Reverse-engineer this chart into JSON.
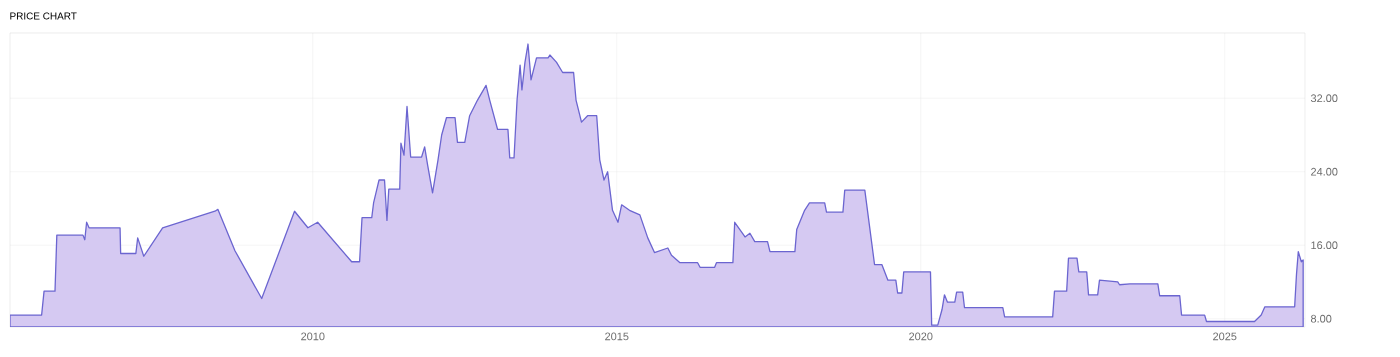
{
  "chart_data": {
    "type": "area",
    "title": "PRICE CHART",
    "color": "#d5c9f2",
    "grid": true,
    "xlim": [
      2005.02,
      2026.32
    ],
    "ylim": [
      7.1,
      39.1
    ],
    "xticks": [
      2010,
      2015,
      2020,
      2025
    ],
    "yticks": [
      {
        "value": 8,
        "label": "8.00"
      },
      {
        "value": 16,
        "label": "16.00"
      },
      {
        "value": 24,
        "label": "24.00"
      },
      {
        "value": 32,
        "label": "32.00"
      }
    ],
    "x": [
      2005.02,
      2005.54,
      2005.58,
      2005.76,
      2005.79,
      2006.22,
      2006.25,
      2006.28,
      2006.32,
      2006.83,
      2006.84,
      2007.09,
      2007.12,
      2007.22,
      2007.53,
      2008.39,
      2008.44,
      2008.72,
      2009.16,
      2009.7,
      2009.92,
      2010.08,
      2010.64,
      2010.77,
      2010.81,
      2010.97,
      2011.0,
      2011.05,
      2011.09,
      2011.18,
      2011.22,
      2011.25,
      2011.43,
      2011.45,
      2011.5,
      2011.55,
      2011.61,
      2011.79,
      2011.84,
      2011.89,
      2011.97,
      2012.06,
      2012.12,
      2012.2,
      2012.34,
      2012.38,
      2012.5,
      2012.58,
      2012.71,
      2012.85,
      2012.91,
      2013.04,
      2013.21,
      2013.24,
      2013.31,
      2013.36,
      2013.41,
      2013.44,
      2013.49,
      2013.54,
      2013.59,
      2013.68,
      2013.87,
      2013.9,
      2014.01,
      2014.11,
      2014.29,
      2014.33,
      2014.42,
      2014.52,
      2014.67,
      2014.72,
      2014.79,
      2014.85,
      2014.93,
      2015.02,
      2015.08,
      2015.21,
      2015.38,
      2015.51,
      2015.62,
      2015.84,
      2015.9,
      2016.04,
      2016.33,
      2016.37,
      2016.61,
      2016.64,
      2016.91,
      2016.94,
      2017.11,
      2017.19,
      2017.27,
      2017.48,
      2017.52,
      2017.93,
      2017.96,
      2018.09,
      2018.17,
      2018.42,
      2018.45,
      2018.72,
      2018.75,
      2019.08,
      2019.24,
      2019.36,
      2019.46,
      2019.59,
      2019.62,
      2019.69,
      2019.72,
      2020.16,
      2020.18,
      2020.28,
      2020.35,
      2020.39,
      2020.44,
      2020.56,
      2020.59,
      2020.69,
      2020.72,
      2021.35,
      2021.38,
      2022.17,
      2022.2,
      2022.4,
      2022.43,
      2022.57,
      2022.6,
      2022.73,
      2022.76,
      2022.91,
      2022.94,
      2023.24,
      2023.27,
      2023.44,
      2023.9,
      2023.93,
      2024.26,
      2024.29,
      2024.67,
      2024.7,
      2025.49,
      2025.6,
      2025.66,
      2026.15,
      2026.18,
      2026.21,
      2026.26,
      2026.29
    ],
    "values": [
      8.4,
      8.4,
      11.0,
      11.0,
      17.1,
      17.1,
      16.6,
      18.5,
      17.9,
      17.9,
      15.1,
      15.1,
      16.8,
      14.8,
      17.9,
      19.7,
      19.9,
      15.4,
      10.2,
      19.7,
      17.9,
      18.5,
      14.2,
      14.2,
      19.0,
      19.0,
      20.6,
      22.0,
      23.1,
      23.1,
      18.7,
      22.1,
      22.1,
      27.1,
      25.8,
      31.1,
      25.6,
      25.6,
      26.7,
      24.7,
      21.7,
      25.3,
      28.0,
      29.9,
      29.9,
      27.2,
      27.2,
      30.1,
      31.8,
      33.4,
      31.8,
      28.6,
      28.6,
      25.5,
      25.5,
      31.8,
      35.6,
      32.9,
      35.9,
      37.9,
      34.0,
      36.4,
      36.4,
      36.7,
      35.9,
      34.8,
      34.8,
      31.8,
      29.4,
      30.1,
      30.1,
      25.3,
      23.1,
      24.0,
      19.8,
      18.5,
      20.4,
      19.8,
      19.3,
      16.8,
      15.2,
      15.7,
      14.9,
      14.1,
      14.1,
      13.6,
      13.6,
      14.1,
      14.1,
      18.5,
      16.9,
      17.3,
      16.4,
      16.4,
      15.3,
      15.3,
      17.7,
      19.8,
      20.6,
      20.6,
      19.6,
      19.6,
      22.0,
      22.0,
      13.9,
      13.9,
      12.2,
      12.2,
      10.8,
      10.8,
      13.1,
      13.1,
      7.3,
      7.3,
      9.0,
      10.6,
      9.8,
      9.8,
      10.9,
      10.9,
      9.2,
      9.2,
      8.2,
      8.2,
      11.0,
      11.0,
      14.6,
      14.6,
      13.1,
      13.1,
      10.6,
      10.6,
      12.2,
      12.0,
      11.7,
      11.8,
      11.8,
      10.5,
      10.5,
      8.4,
      8.4,
      7.7,
      7.7,
      8.4,
      9.3,
      9.3,
      12.8,
      15.3,
      14.2,
      14.4
    ]
  }
}
